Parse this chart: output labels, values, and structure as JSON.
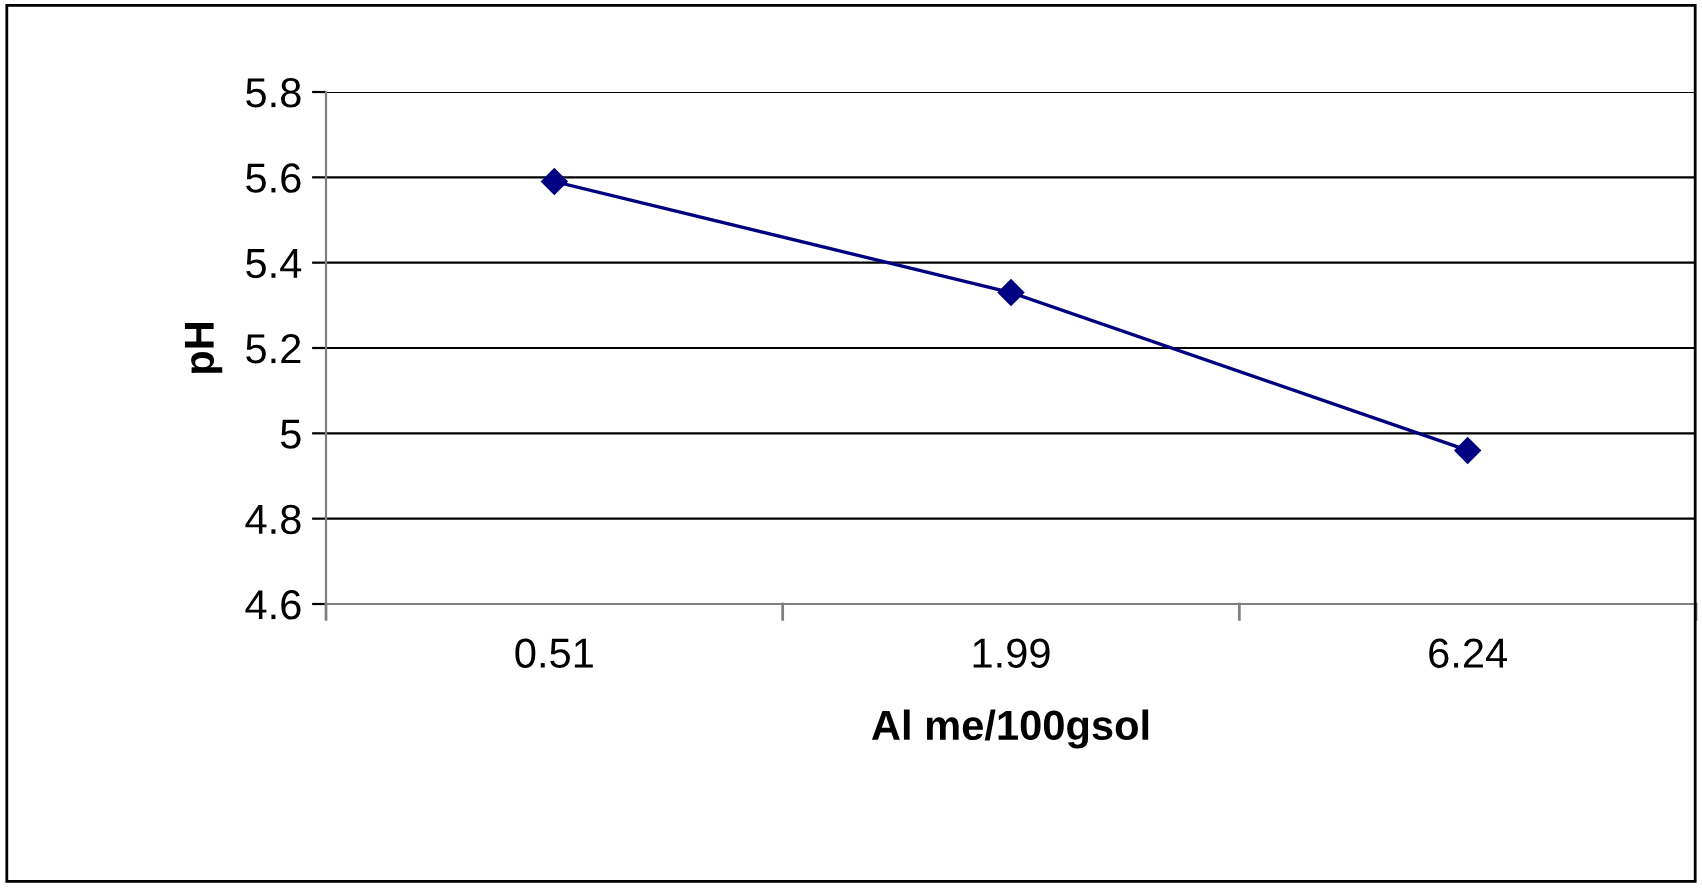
{
  "chart_data": {
    "type": "line",
    "xlabel": "Al me/100gsol",
    "ylabel": "pH",
    "categories": [
      "0.51",
      "1.99",
      "6.24"
    ],
    "series": [
      {
        "color": "#000080",
        "values": [
          5.59,
          5.33,
          4.96
        ]
      }
    ],
    "ylim": [
      4.6,
      5.8
    ],
    "yticks": [
      4.6,
      4.8,
      5,
      5.2,
      5.4,
      5.6,
      5.8
    ],
    "grid": "y",
    "marker": "diamond",
    "line_style": "solid",
    "legend": false
  }
}
